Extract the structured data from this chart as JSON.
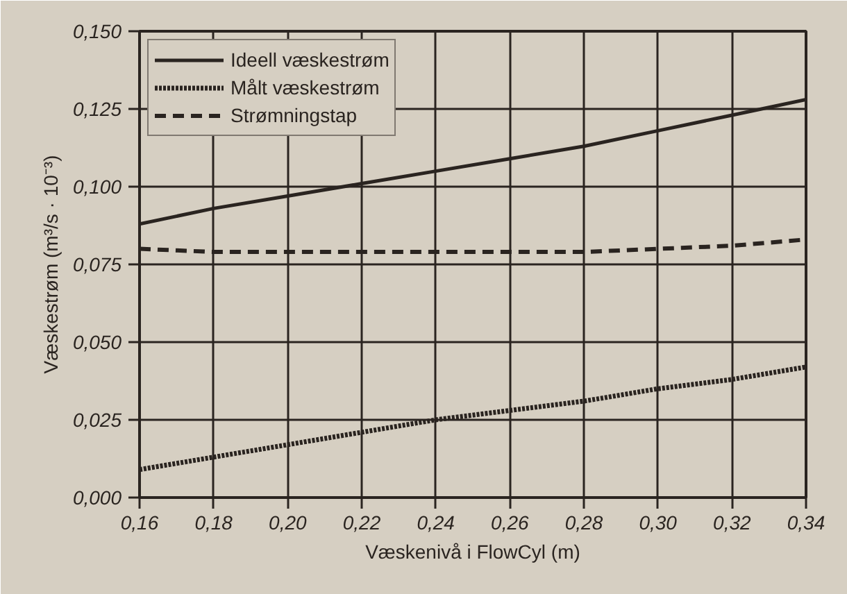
{
  "chart_data": {
    "type": "line",
    "xlabel": "Væskenivå i FlowCyl (m)",
    "ylabel": "Væskestrøm (m³/s · 10⁻³)",
    "x": [
      0.16,
      0.18,
      0.2,
      0.22,
      0.24,
      0.26,
      0.28,
      0.3,
      0.32,
      0.34
    ],
    "series": [
      {
        "name": "Ideell væskestrøm",
        "color": "#2a2420",
        "line_style": "solid",
        "values": [
          0.088,
          0.093,
          0.097,
          0.101,
          0.105,
          0.109,
          0.113,
          0.118,
          0.123,
          0.128
        ]
      },
      {
        "name": "Målt væskestrøm",
        "color": "#2a2420",
        "line_style": "dotted",
        "values": [
          0.009,
          0.013,
          0.017,
          0.021,
          0.025,
          0.028,
          0.031,
          0.035,
          0.038,
          0.042
        ]
      },
      {
        "name": "Strømningstap",
        "color": "#2a2420",
        "line_style": "dashed",
        "values": [
          0.08,
          0.079,
          0.079,
          0.079,
          0.079,
          0.079,
          0.079,
          0.08,
          0.081,
          0.083
        ]
      }
    ],
    "xlim": [
      0.16,
      0.34
    ],
    "xticks": [
      {
        "value": 0.16,
        "label": "0,16"
      },
      {
        "value": 0.18,
        "label": "0,18"
      },
      {
        "value": 0.2,
        "label": "0,20"
      },
      {
        "value": 0.22,
        "label": "0,22"
      },
      {
        "value": 0.24,
        "label": "0,24"
      },
      {
        "value": 0.26,
        "label": "0,26"
      },
      {
        "value": 0.28,
        "label": "0,28"
      },
      {
        "value": 0.3,
        "label": "0,30"
      },
      {
        "value": 0.32,
        "label": "0,32"
      },
      {
        "value": 0.34,
        "label": "0,34"
      }
    ],
    "ylim": [
      0,
      0.15
    ],
    "yticks": [
      {
        "value": 0,
        "label": "0,000"
      },
      {
        "value": 0.025,
        "label": "0,025"
      },
      {
        "value": 0.05,
        "label": "0,050"
      },
      {
        "value": 0.075,
        "label": "0,075"
      },
      {
        "value": 0.1,
        "label": "0,100"
      },
      {
        "value": 0.125,
        "label": "0,125"
      },
      {
        "value": 0.15,
        "label": "0,150"
      }
    ],
    "grid": true,
    "legend": "top left",
    "marker": "none"
  }
}
